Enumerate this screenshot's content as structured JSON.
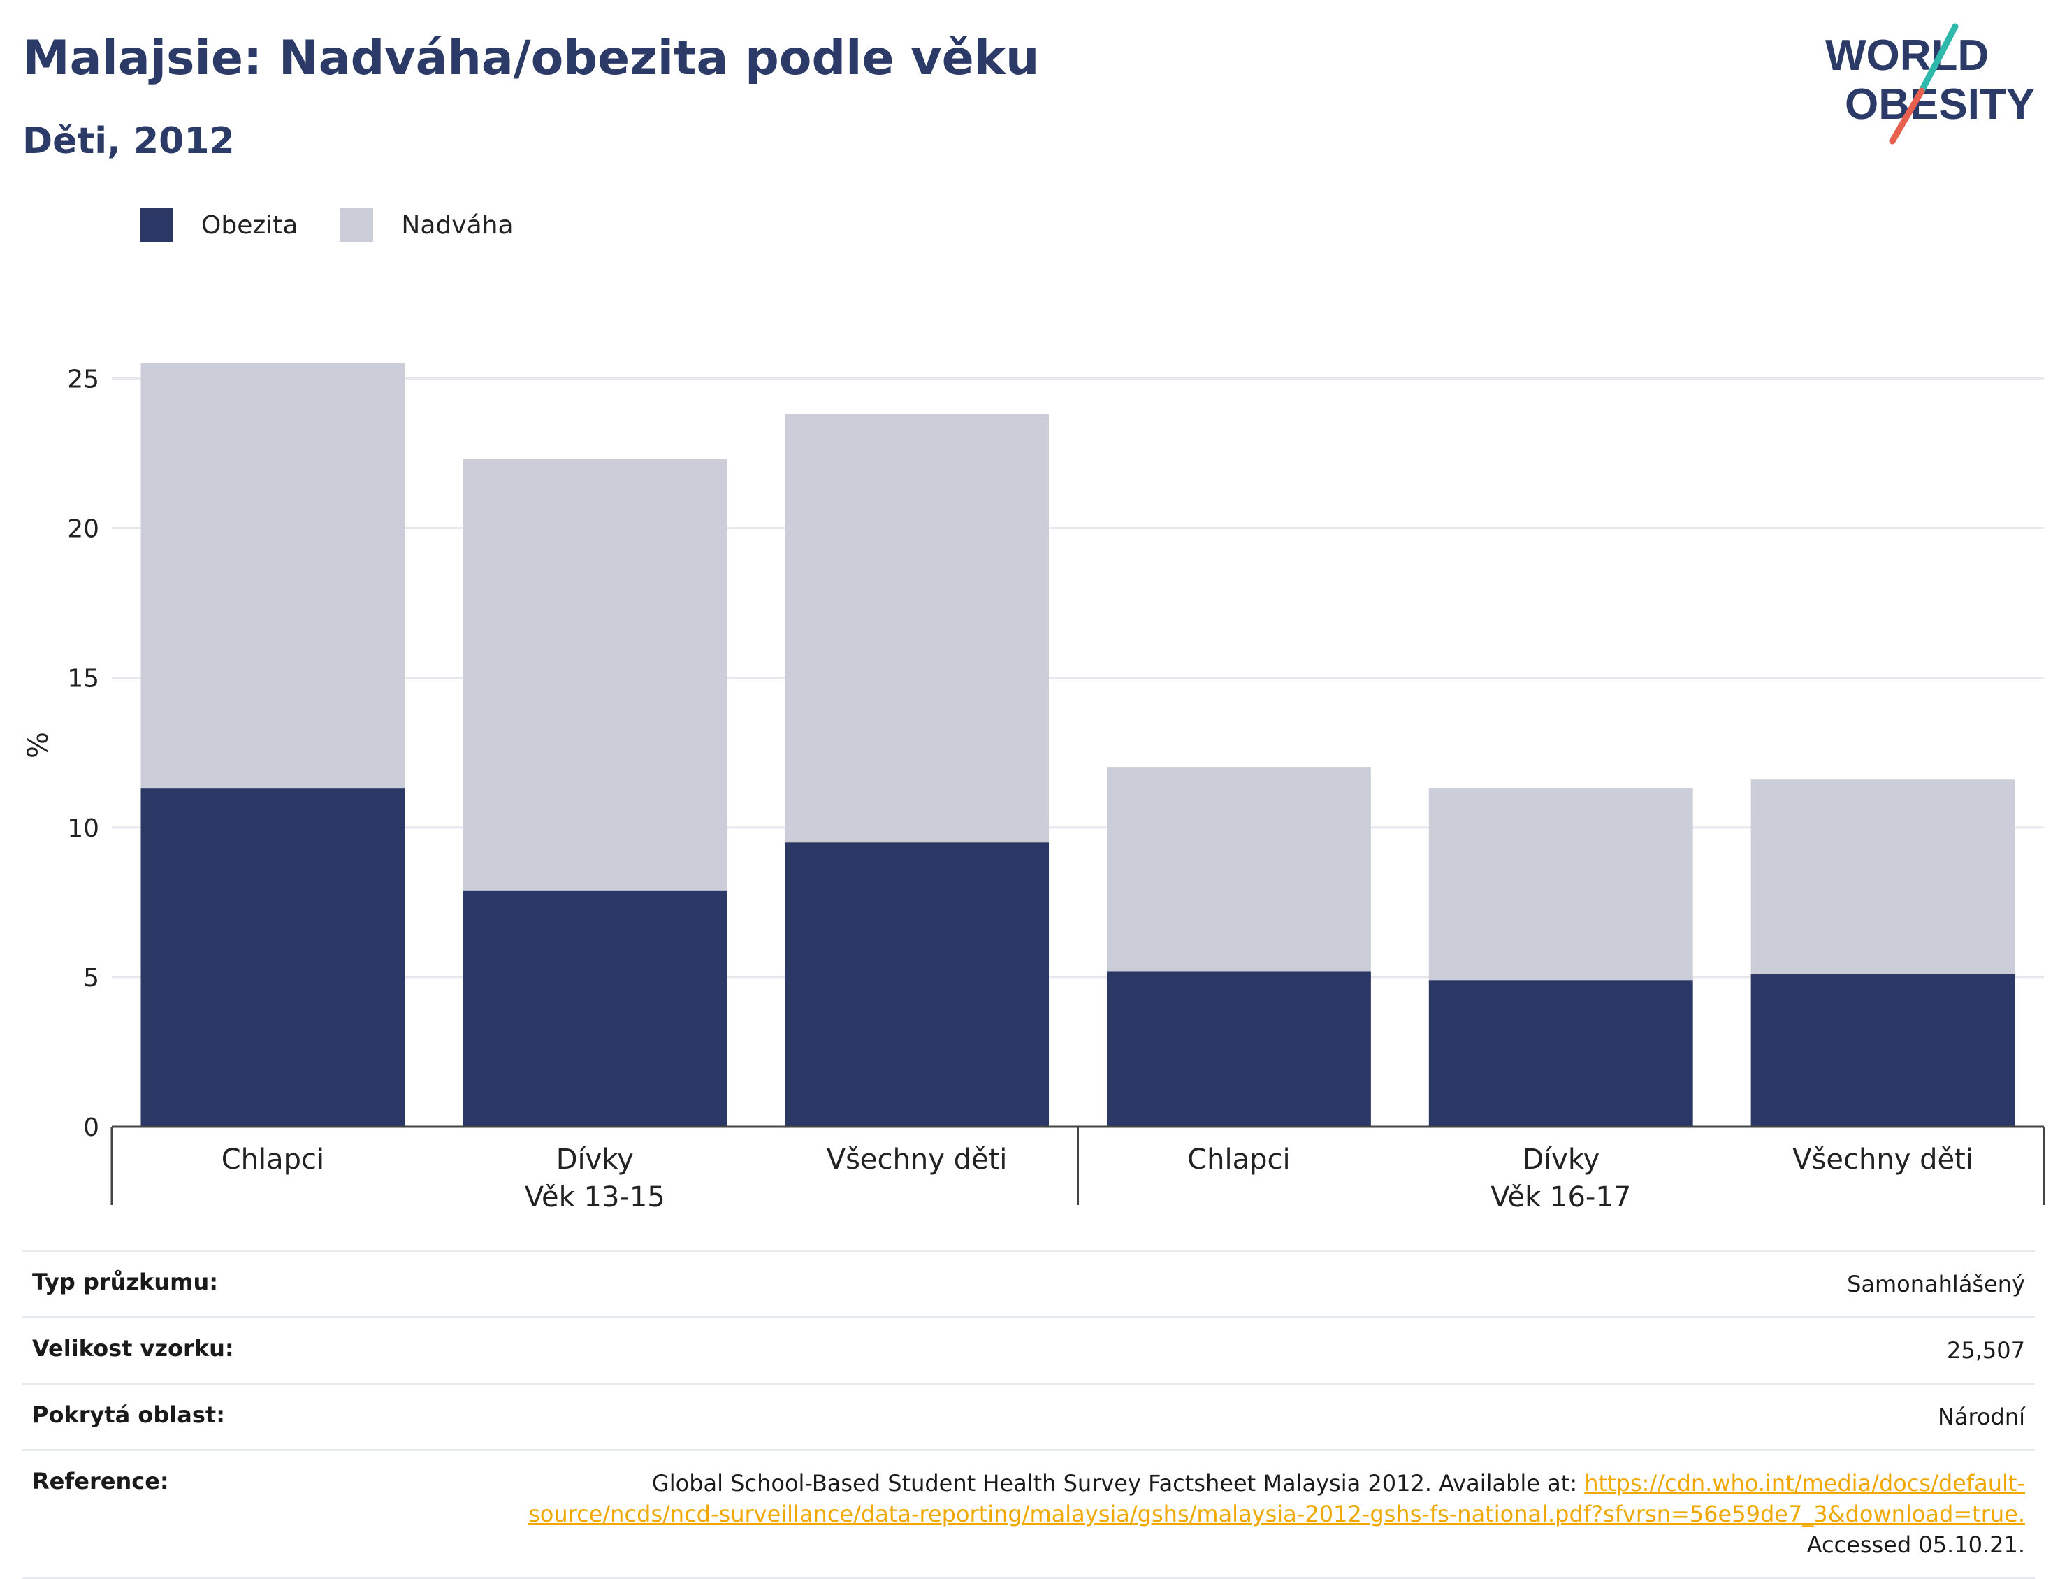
{
  "header": {
    "title": "Malajsie: Nadváha/obezita podle věku",
    "subtitle": "Děti, 2012"
  },
  "logo": {
    "line1": "WORLD",
    "line2": "OBESITY"
  },
  "legend": [
    {
      "label": "Obezita",
      "color": "#2b3764"
    },
    {
      "label": "Nadváha",
      "color": "#cbcdd9"
    }
  ],
  "chart_data": {
    "type": "bar",
    "stacked": true,
    "ylabel": "%",
    "ylim": [
      0,
      25.5
    ],
    "yticks": [
      0,
      5,
      10,
      15,
      20,
      25
    ],
    "grid": true,
    "legend_position": "top-left",
    "groups": [
      {
        "label": "Věk 13-15",
        "categories": [
          "Chlapci",
          "Dívky",
          "Všechny děti"
        ]
      },
      {
        "label": "Věk 16-17",
        "categories": [
          "Chlapci",
          "Dívky",
          "Všechny děti"
        ]
      }
    ],
    "series": [
      {
        "name": "Obezita",
        "color": "#2b3764",
        "values": [
          11.3,
          7.9,
          9.5,
          5.2,
          4.9,
          5.1
        ]
      },
      {
        "name": "Nadváha",
        "color": "#cbcdd9",
        "values": [
          14.2,
          14.4,
          14.3,
          6.8,
          6.4,
          6.5
        ]
      }
    ]
  },
  "info": {
    "survey_type_label": "Typ průzkumu:",
    "survey_type_value": "Samonahlášený",
    "sample_label": "Velikost vzorku:",
    "sample_value": "25,507",
    "area_label": "Pokrytá oblast:",
    "area_value": "Národní",
    "reference_label": "Reference:",
    "reference_text": "Global School-Based Student Health Survey Factsheet Malaysia 2012. Available at: ",
    "reference_link": "https://cdn.who.int/media/docs/default-source/ncds/ncd-surveillance/data-reporting/malaysia/gshs/malaysia-2012-gshs-fs-national.pdf?sfvrsn=56e59de7_3&download=true.",
    "reference_accessed": "Accessed 05.10.21."
  }
}
